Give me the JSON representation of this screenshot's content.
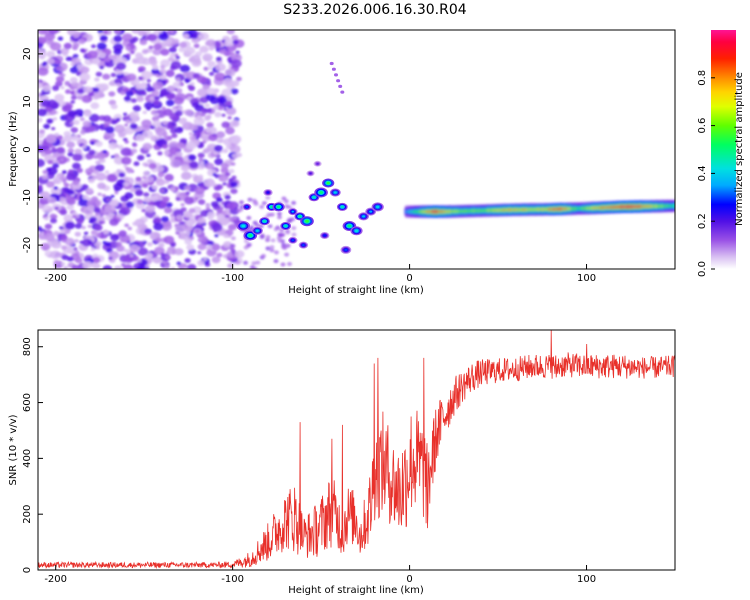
{
  "title": "S233.2026.006.16.30.R04",
  "chart_data": [
    {
      "type": "heatmap",
      "xlabel": "Height of straight line (km)",
      "ylabel": "Frequency (Hz)",
      "xlim": [
        -210,
        150
      ],
      "ylim": [
        -25,
        25
      ],
      "xticks": [
        -200,
        -100,
        0,
        100
      ],
      "yticks": [
        -20,
        -10,
        0,
        10,
        20
      ],
      "colorbar": {
        "label": "Normalized spectral amplitude",
        "range": [
          0,
          1
        ],
        "ticks": [
          "0.0",
          "0.2",
          "0.4",
          "0.6",
          "0.8"
        ],
        "tick_values": [
          0,
          0.2,
          0.4,
          0.6,
          0.8
        ]
      },
      "features": {
        "noise_region_x": [
          -210,
          -96
        ],
        "carrier_line": [
          {
            "x": -2,
            "f": -13.0
          },
          {
            "x": 20,
            "f": -13.0
          },
          {
            "x": 40,
            "f": -12.8
          },
          {
            "x": 60,
            "f": -12.6
          },
          {
            "x": 80,
            "f": -12.5
          },
          {
            "x": 100,
            "f": -12.3
          },
          {
            "x": 120,
            "f": -12.0
          },
          {
            "x": 150,
            "f": -11.8
          }
        ],
        "carrier_amplitude": [
          {
            "x": -2,
            "a": 0.35
          },
          {
            "x": 10,
            "a": 0.75
          },
          {
            "x": 15,
            "a": 0.9
          },
          {
            "x": 25,
            "a": 0.65
          },
          {
            "x": 40,
            "a": 0.6
          },
          {
            "x": 55,
            "a": 0.75
          },
          {
            "x": 75,
            "a": 0.7
          },
          {
            "x": 85,
            "a": 0.9
          },
          {
            "x": 95,
            "a": 0.55
          },
          {
            "x": 110,
            "a": 0.8
          },
          {
            "x": 125,
            "a": 0.95
          },
          {
            "x": 150,
            "a": 0.5
          }
        ]
      }
    },
    {
      "type": "line",
      "xlabel": "Height of straight line (km)",
      "ylabel": "SNR (10 * v/v)",
      "xlim": [
        -210,
        150
      ],
      "ylim": [
        0,
        860
      ],
      "xticks": [
        -200,
        -100,
        0,
        100
      ],
      "yticks": [
        0,
        200,
        400,
        600,
        800
      ],
      "color": "#e8302a",
      "series": [
        {
          "name": "SNR",
          "x": [
            -210,
            -190,
            -170,
            -150,
            -130,
            -110,
            -100,
            -95,
            -90,
            -85,
            -80,
            -75,
            -70,
            -65,
            -62,
            -60,
            -55,
            -50,
            -45,
            -42,
            -40,
            -38,
            -35,
            -30,
            -28,
            -25,
            -22,
            -20,
            -18,
            -15,
            -12,
            -10,
            -8,
            -5,
            -2,
            0,
            2,
            5,
            8,
            10,
            12,
            15,
            20,
            25,
            30,
            35,
            40,
            50,
            60,
            70,
            80,
            82,
            90,
            100,
            110,
            120,
            130,
            140,
            150
          ],
          "mean": [
            18,
            18,
            18,
            18,
            18,
            18,
            20,
            28,
            40,
            70,
            100,
            140,
            180,
            190,
            150,
            120,
            130,
            160,
            210,
            200,
            170,
            130,
            200,
            180,
            120,
            170,
            230,
            340,
            360,
            380,
            350,
            320,
            290,
            280,
            330,
            380,
            400,
            380,
            350,
            300,
            370,
            480,
            560,
            620,
            660,
            690,
            705,
            715,
            720,
            730,
            730,
            730,
            735,
            730,
            730,
            730,
            725,
            725,
            730
          ],
          "noise": [
            10,
            10,
            10,
            10,
            10,
            10,
            12,
            20,
            30,
            50,
            70,
            90,
            110,
            130,
            100,
            80,
            90,
            110,
            130,
            120,
            100,
            90,
            110,
            100,
            80,
            100,
            150,
            170,
            180,
            190,
            180,
            170,
            160,
            180,
            190,
            200,
            200,
            200,
            180,
            160,
            150,
            110,
            90,
            70,
            60,
            55,
            50,
            45,
            45,
            45,
            45,
            45,
            45,
            45,
            45,
            45,
            40,
            40,
            40
          ],
          "spikes": [
            {
              "x": -62,
              "y": 530
            },
            {
              "x": -44,
              "y": 470
            },
            {
              "x": -38,
              "y": 520
            },
            {
              "x": -20,
              "y": 740
            },
            {
              "x": -18,
              "y": 760
            },
            {
              "x": 8,
              "y": 760
            },
            {
              "x": 10,
              "y": 150
            },
            {
              "x": 80,
              "y": 860
            },
            {
              "x": 83,
              "y": 690
            },
            {
              "x": 100,
              "y": 810
            }
          ]
        }
      ]
    }
  ]
}
